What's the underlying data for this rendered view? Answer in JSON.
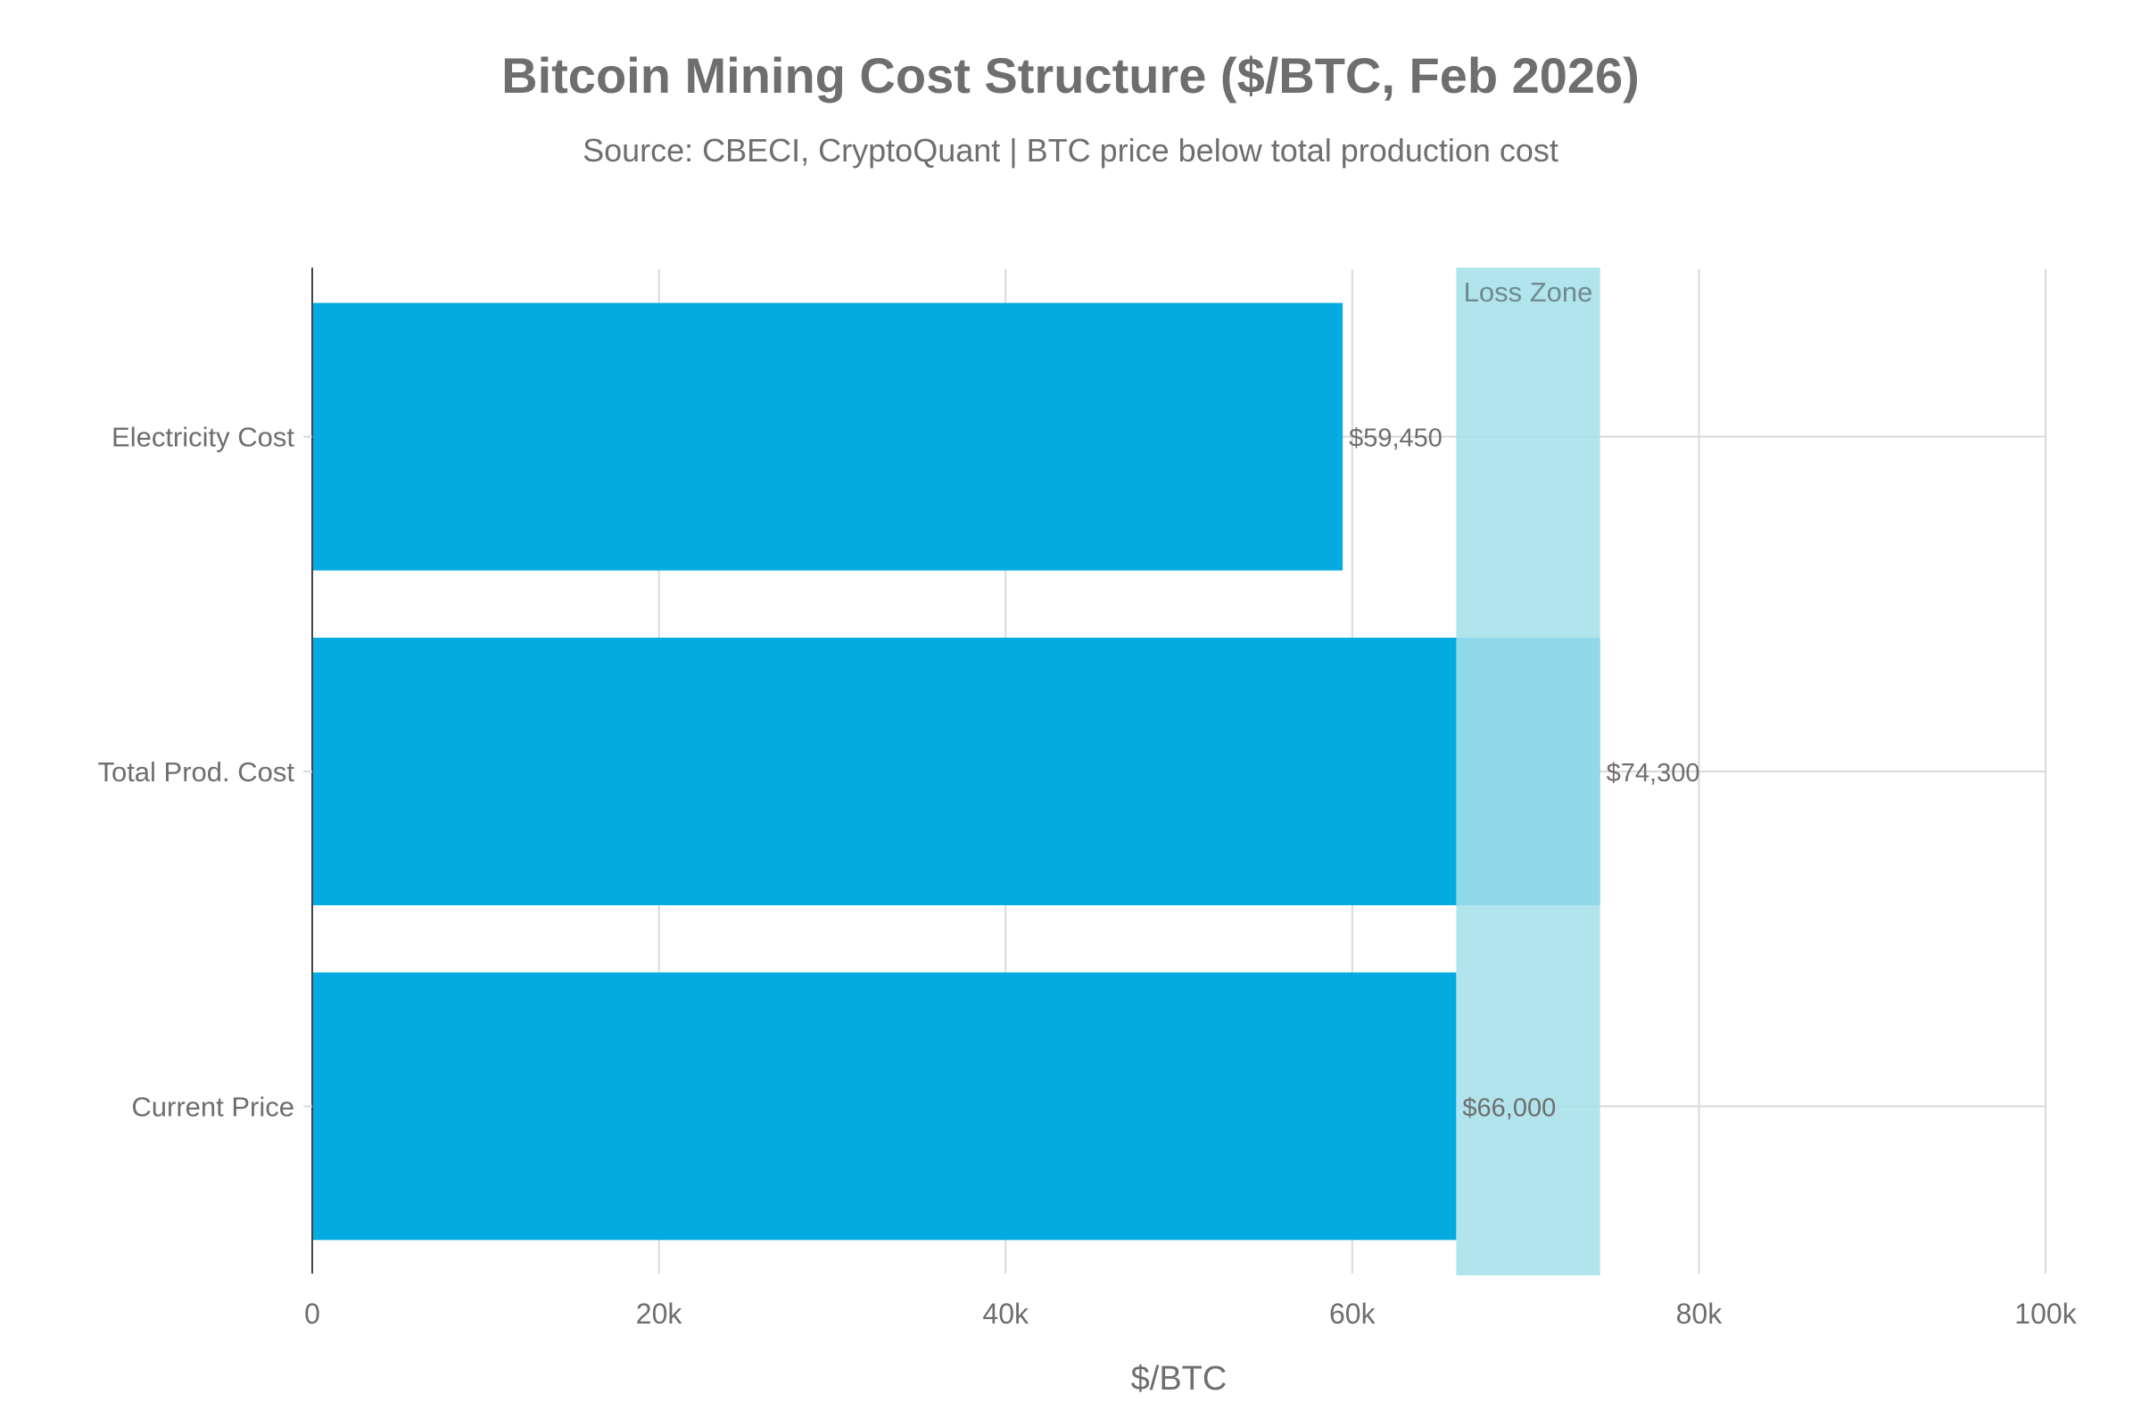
{
  "chart_data": {
    "type": "bar",
    "orientation": "horizontal",
    "title": "Bitcoin Mining Cost Structure ($/BTC, Feb 2026)",
    "subtitle": "Source: CBECI, CryptoQuant | BTC price below total production cost",
    "xlabel": "$/BTC",
    "ylabel": "",
    "xlim": [
      0,
      100000
    ],
    "x_ticks": [
      0,
      20000,
      40000,
      60000,
      80000,
      100000
    ],
    "x_tick_labels": [
      "0",
      "20k",
      "40k",
      "60k",
      "80k",
      "100k"
    ],
    "categories": [
      "Electricity Cost",
      "Total Prod. Cost",
      "Current Price"
    ],
    "values": [
      59450,
      74300,
      66000
    ],
    "data_labels": [
      "$59,450",
      "$74,300",
      "$66,000"
    ],
    "shaded_region": {
      "label": "Loss Zone",
      "x0": 66000,
      "x1": 74300
    },
    "grid": true,
    "legend": "none",
    "colors": {
      "bar": "#03abe0",
      "loss_zone": "#a5e0ea",
      "grid": "#d9d9d9",
      "text": "#6e6e6e"
    }
  }
}
